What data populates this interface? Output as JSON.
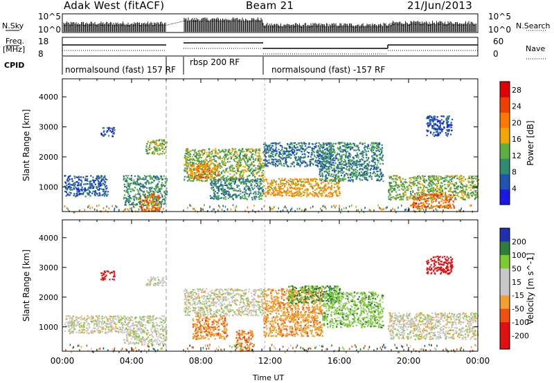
{
  "header": {
    "radar_title": "Adak West (fitACF)",
    "beam": "Beam 21",
    "date": "21/Jun/2013"
  },
  "top_panel": {
    "nsky_label": "N.Sky",
    "nsearch_label": "N.Search",
    "left_ticks": [
      "10^5",
      "10^0"
    ],
    "right_ticks": [
      "10^5",
      "10^0"
    ]
  },
  "freq_panel": {
    "freq_label_1": "Freq.",
    "freq_label_2": "[MHz]",
    "nave_label": "Nave",
    "left_ticks": [
      "18",
      "8"
    ],
    "right_ticks": [
      "60",
      "0"
    ]
  },
  "cpid": {
    "label": "CPID",
    "modes": [
      {
        "name": "normalsound (fast) 157 RF",
        "start_hour": 0,
        "end_hour": 6
      },
      {
        "name": "rbsp 200 RF",
        "start_hour": 7,
        "end_hour": 11.6
      },
      {
        "name": "normalsound (fast) -157 RF",
        "start_hour": 11.6,
        "end_hour": 24
      }
    ]
  },
  "x_axis": {
    "label": "Time UT",
    "ticks": [
      "00:00",
      "04:00",
      "08:00",
      "12:00",
      "16:00",
      "20:00",
      "00:00"
    ]
  },
  "chart_data": [
    {
      "type": "heatmap",
      "ylabel": "Slant Range [km]",
      "xlabel": "Time UT",
      "y_ticks": [
        "1000",
        "2000",
        "3000",
        "4000"
      ],
      "xlim": [
        0,
        24
      ],
      "ylim": [
        180,
        4600
      ],
      "colorbar": {
        "label": "Power [dB]",
        "ticks": [
          "4",
          "8",
          "12",
          "16",
          "20",
          "24",
          "28"
        ],
        "range": [
          0,
          30
        ]
      },
      "data_gaps": [
        [
          6.0,
          7.0
        ]
      ],
      "echo_regions": [
        {
          "t": [
            0.1,
            2.6
          ],
          "r": [
            700,
            1400
          ],
          "level": 9
        },
        {
          "t": [
            2.2,
            3.0
          ],
          "r": [
            2700,
            3000
          ],
          "level": 8
        },
        {
          "t": [
            3.5,
            6.0
          ],
          "r": [
            400,
            1400
          ],
          "level": 13
        },
        {
          "t": [
            4.4,
            5.6
          ],
          "r": [
            200,
            800
          ],
          "level": 25
        },
        {
          "t": [
            4.8,
            6.0
          ],
          "r": [
            2100,
            2600
          ],
          "level": 17
        },
        {
          "t": [
            7.0,
            11.6
          ],
          "r": [
            1200,
            2300
          ],
          "level": 16
        },
        {
          "t": [
            7.3,
            9.0
          ],
          "r": [
            1300,
            1800
          ],
          "level": 23
        },
        {
          "t": [
            8.5,
            11.6
          ],
          "r": [
            600,
            1300
          ],
          "level": 12
        },
        {
          "t": [
            11.6,
            16.0
          ],
          "r": [
            700,
            1300
          ],
          "level": 21
        },
        {
          "t": [
            11.6,
            15.5
          ],
          "r": [
            1700,
            2500
          ],
          "level": 10
        },
        {
          "t": [
            14.8,
            18.5
          ],
          "r": [
            1200,
            2500
          ],
          "level": 12
        },
        {
          "t": [
            18.8,
            24.0
          ],
          "r": [
            600,
            1400
          ],
          "level": 16
        },
        {
          "t": [
            20.2,
            22.6
          ],
          "r": [
            300,
            800
          ],
          "level": 26
        },
        {
          "t": [
            21.0,
            22.5
          ],
          "r": [
            2700,
            3400
          ],
          "level": 7
        }
      ]
    },
    {
      "type": "heatmap",
      "ylabel": "Slant Range [km]",
      "xlabel": "Time UT",
      "y_ticks": [
        "1000",
        "2000",
        "3000",
        "4000"
      ],
      "xlim": [
        0,
        24
      ],
      "ylim": [
        180,
        4600
      ],
      "colorbar": {
        "label": "Velocity [m s^-1]",
        "ticks": [
          "200",
          "100",
          "50",
          "15",
          "-15",
          "-50",
          "-100",
          "-200"
        ],
        "range": [
          -250,
          250
        ]
      },
      "data_gaps": [
        [
          6.0,
          7.0
        ]
      ],
      "echo_regions": [
        {
          "t": [
            0.1,
            3.5
          ],
          "r": [
            800,
            1400
          ],
          "v": 0
        },
        {
          "t": [
            2.2,
            3.0
          ],
          "r": [
            2600,
            2900
          ],
          "v": -230
        },
        {
          "t": [
            3.5,
            6.0
          ],
          "r": [
            400,
            1400
          ],
          "v": 5
        },
        {
          "t": [
            4.8,
            6.0
          ],
          "r": [
            2400,
            2700
          ],
          "v": 0
        },
        {
          "t": [
            7.0,
            11.6
          ],
          "r": [
            1400,
            2300
          ],
          "v": 0
        },
        {
          "t": [
            7.5,
            9.5
          ],
          "r": [
            600,
            1400
          ],
          "v": -60
        },
        {
          "t": [
            10.0,
            11.0
          ],
          "r": [
            200,
            900
          ],
          "v": -70
        },
        {
          "t": [
            11.6,
            15.0
          ],
          "r": [
            700,
            2300
          ],
          "v": -50
        },
        {
          "t": [
            13.0,
            16.0
          ],
          "r": [
            1800,
            2400
          ],
          "v": 60
        },
        {
          "t": [
            15.0,
            18.5
          ],
          "r": [
            1000,
            2200
          ],
          "v": 40
        },
        {
          "t": [
            18.8,
            24.0
          ],
          "r": [
            600,
            1500
          ],
          "v": 0
        },
        {
          "t": [
            21.0,
            22.5
          ],
          "r": [
            2800,
            3400
          ],
          "v": -210
        }
      ]
    }
  ]
}
